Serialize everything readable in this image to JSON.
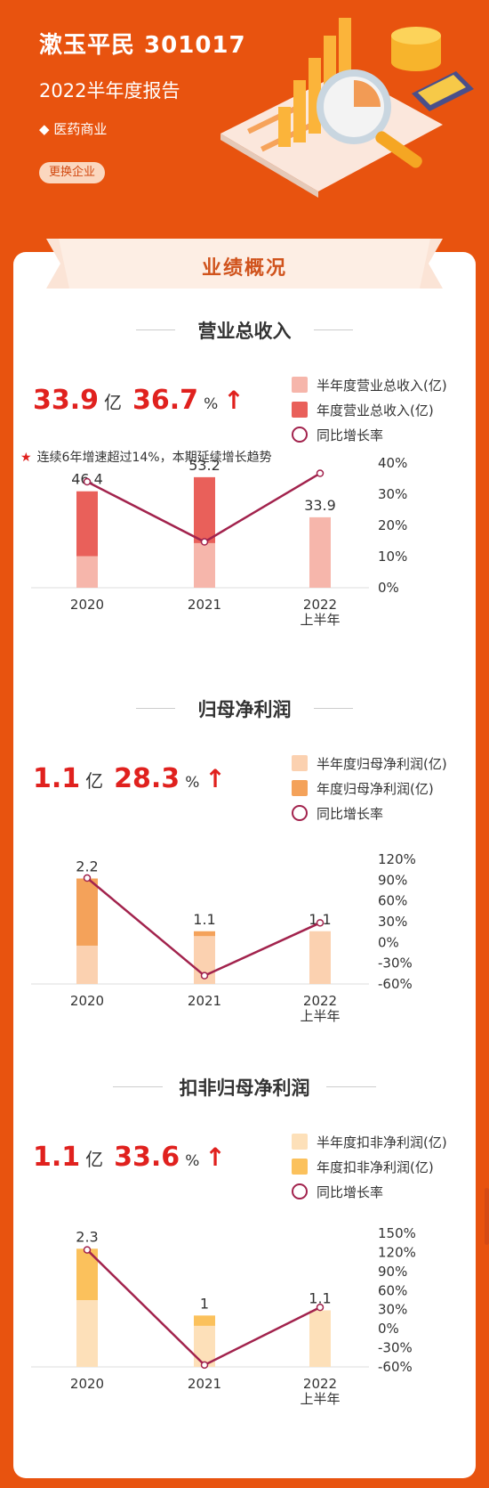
{
  "header": {
    "title": "漱玉平民 301017",
    "subtitle": "2022半年度报告",
    "industry": "医药商业",
    "change_button": "更换企业"
  },
  "overview_title": "业绩概况",
  "chart_data": [
    {
      "type": "bar",
      "title": "营业总收入",
      "kpi": {
        "value": "33.9",
        "unit": "亿",
        "growth": "36.7",
        "pct": "%"
      },
      "note": "连续6年增速超过14%，本期延续增长趋势",
      "categories": [
        "2020",
        "2021",
        "2022\n上半年"
      ],
      "series": [
        {
          "name": "半年度营业总收入(亿)",
          "values": [
            15.2,
            21.5,
            33.9
          ],
          "color": "#f6b6ab"
        },
        {
          "name": "年度营业总收入(亿)",
          "values": [
            46.4,
            53.2,
            null
          ],
          "color": "#e9605a"
        },
        {
          "name": "同比增长率",
          "values": [
            34,
            14.7,
            36.7
          ],
          "color": "#a2234d",
          "axis": "right"
        }
      ],
      "bar_labels": [
        "46.4",
        "53.2",
        "33.9"
      ],
      "ylim": [
        0,
        60
      ],
      "y2lim": [
        0,
        40
      ],
      "y2ticks": [
        "40%",
        "30%",
        "20%",
        "10%",
        "0%"
      ]
    },
    {
      "type": "bar",
      "title": "归母净利润",
      "kpi": {
        "value": "1.1",
        "unit": "亿",
        "growth": "28.3",
        "pct": "%"
      },
      "categories": [
        "2020",
        "2021",
        "2022\n上半年"
      ],
      "series": [
        {
          "name": "半年度归母净利润(亿)",
          "values": [
            0.8,
            1.0,
            1.1
          ],
          "color": "#fbd1b0"
        },
        {
          "name": "年度归母净利润(亿)",
          "values": [
            2.2,
            1.1,
            null
          ],
          "color": "#f4a25a"
        },
        {
          "name": "同比增长率",
          "values": [
            93,
            -48,
            28.3
          ],
          "color": "#a2234d",
          "axis": "right"
        }
      ],
      "bar_labels": [
        "2.2",
        "1.1",
        "1.1"
      ],
      "ylim": [
        0,
        2.6
      ],
      "y2lim": [
        -60,
        120
      ],
      "y2ticks": [
        "120%",
        "90%",
        "60%",
        "30%",
        "0%",
        "-30%",
        "-60%"
      ]
    },
    {
      "type": "bar",
      "title": "扣非归母净利润",
      "kpi": {
        "value": "1.1",
        "unit": "亿",
        "growth": "33.6",
        "pct": "%"
      },
      "categories": [
        "2020",
        "2021",
        "2022\n上半年"
      ],
      "series": [
        {
          "name": "半年度扣非净利润(亿)",
          "values": [
            1.3,
            0.8,
            1.1
          ],
          "color": "#fde0b9"
        },
        {
          "name": "年度扣非净利润(亿)",
          "values": [
            2.3,
            1.0,
            null
          ],
          "color": "#fbc15c"
        },
        {
          "name": "同比增长率",
          "values": [
            124,
            -57,
            33.6
          ],
          "color": "#a2234d",
          "axis": "right"
        }
      ],
      "bar_labels": [
        "2.3",
        "1",
        "1.1"
      ],
      "ylim": [
        0,
        2.6
      ],
      "y2lim": [
        -60,
        150
      ],
      "y2ticks": [
        "150%",
        "120%",
        "90%",
        "60%",
        "30%",
        "0%",
        "-30%",
        "-60%"
      ]
    }
  ],
  "colors": {
    "background": "#e8530f",
    "accent_red": "#e0211e",
    "line": "#a2234d"
  }
}
